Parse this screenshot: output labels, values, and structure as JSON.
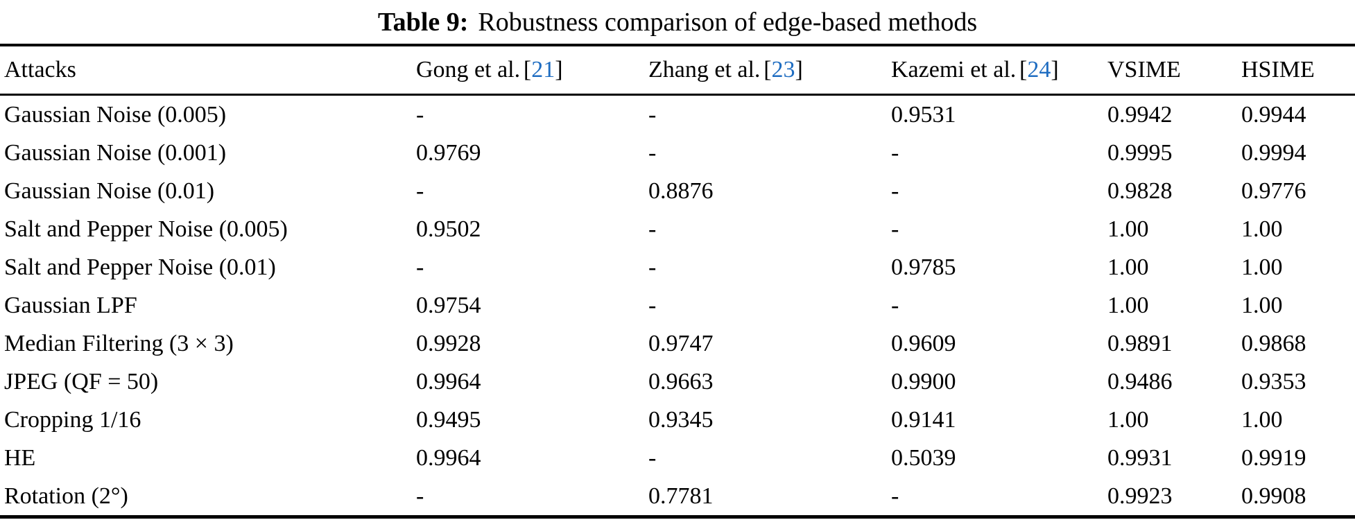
{
  "caption": {
    "label": "Table 9:",
    "text": "Robustness comparison of edge-based methods"
  },
  "colors": {
    "citation_blue": "#1f6dc1",
    "text": "#000000",
    "rule": "#000000",
    "background": "#ffffff"
  },
  "table": {
    "columns": [
      {
        "key": "attack",
        "label": "Attacks"
      },
      {
        "key": "gong",
        "label": "Gong et al.",
        "cite": "21"
      },
      {
        "key": "zhang",
        "label": "Zhang et al.",
        "cite": "23"
      },
      {
        "key": "kazemi",
        "label": "Kazemi et al.",
        "cite": "24"
      },
      {
        "key": "vsime",
        "label": "VSIME"
      },
      {
        "key": "hsime",
        "label": "HSIME"
      }
    ],
    "rows": [
      {
        "attack": "Gaussian Noise (0.005)",
        "gong": "-",
        "zhang": "-",
        "kazemi": "0.9531",
        "vsime": "0.9942",
        "hsime": "0.9944"
      },
      {
        "attack": "Gaussian Noise (0.001)",
        "gong": "0.9769",
        "zhang": "-",
        "kazemi": "-",
        "vsime": "0.9995",
        "hsime": "0.9994"
      },
      {
        "attack": "Gaussian Noise (0.01)",
        "gong": "-",
        "zhang": "0.8876",
        "kazemi": "-",
        "vsime": "0.9828",
        "hsime": "0.9776"
      },
      {
        "attack": "Salt and Pepper Noise (0.005)",
        "gong": "0.9502",
        "zhang": "-",
        "kazemi": "-",
        "vsime": "1.00",
        "hsime": "1.00"
      },
      {
        "attack": "Salt and Pepper Noise (0.01)",
        "gong": "-",
        "zhang": "-",
        "kazemi": "0.9785",
        "vsime": "1.00",
        "hsime": "1.00"
      },
      {
        "attack": "Gaussian LPF",
        "gong": "0.9754",
        "zhang": "-",
        "kazemi": "-",
        "vsime": "1.00",
        "hsime": "1.00"
      },
      {
        "attack": "Median Filtering (3 × 3)",
        "gong": "0.9928",
        "zhang": "0.9747",
        "kazemi": "0.9609",
        "vsime": "0.9891",
        "hsime": "0.9868"
      },
      {
        "attack": "JPEG (QF = 50)",
        "gong": "0.9964",
        "zhang": "0.9663",
        "kazemi": "0.9900",
        "vsime": "0.9486",
        "hsime": "0.9353"
      },
      {
        "attack": "Cropping 1/16",
        "gong": "0.9495",
        "zhang": "0.9345",
        "kazemi": "0.9141",
        "vsime": "1.00",
        "hsime": "1.00"
      },
      {
        "attack": "HE",
        "gong": "0.9964",
        "zhang": "-",
        "kazemi": "0.5039",
        "vsime": "0.9931",
        "hsime": "0.9919"
      },
      {
        "attack": "Rotation (2°)",
        "gong": "-",
        "zhang": "0.7781",
        "kazemi": "-",
        "vsime": "0.9923",
        "hsime": "0.9908"
      }
    ]
  }
}
